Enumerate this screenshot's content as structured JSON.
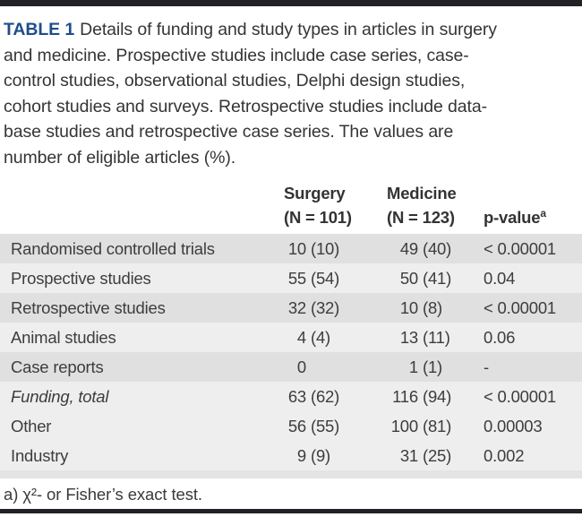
{
  "caption": {
    "label": "TABLE 1",
    "lines": [
      "Details of funding and study types in articles in surgery",
      "and medicine. Prospective studies include case series, case-",
      "control studies, observational studies, Delphi design studies,",
      "cohort studies and surveys. Retrospective studies include data-",
      "base studies and retrospective case series. The values are",
      "number of eligible articles (%)."
    ]
  },
  "table": {
    "columns": {
      "surgery": {
        "name": "Surgery",
        "n": "(N = 101)"
      },
      "medicine": {
        "name": "Medicine",
        "n": "(N = 123)"
      },
      "pvalue": {
        "name": "p-value",
        "footnote_mark": "a"
      }
    },
    "rows": [
      {
        "label": "Randomised controlled trials",
        "surgery_int": "10",
        "surgery_pct": "(10)",
        "medicine_int": "49",
        "medicine_pct": "(40)",
        "p": "< 0.00001"
      },
      {
        "label": "Prospective studies",
        "surgery_int": "55",
        "surgery_pct": "(54)",
        "medicine_int": "50",
        "medicine_pct": "(41)",
        "p": "0.04"
      },
      {
        "label": "Retrospective studies",
        "surgery_int": "32",
        "surgery_pct": "(32)",
        "medicine_int": "10",
        "medicine_pct": "(8)",
        "p": "< 0.00001"
      },
      {
        "label": "Animal studies",
        "surgery_int": "4",
        "surgery_pct": "(4)",
        "medicine_int": "13",
        "medicine_pct": "(11)",
        "p": "0.06"
      },
      {
        "label": "Case reports",
        "surgery_int": "0",
        "surgery_pct": "",
        "medicine_int": "1",
        "medicine_pct": "(1)",
        "p": "-"
      },
      {
        "label": "Funding, total",
        "surgery_int": "63",
        "surgery_pct": "(62)",
        "medicine_int": "116",
        "medicine_pct": "(94)",
        "p": "< 0.00001"
      },
      {
        "label": "Other",
        "surgery_int": "56",
        "surgery_pct": "(55)",
        "medicine_int": "100",
        "medicine_pct": "(81)",
        "p": "0.00003"
      },
      {
        "label": "Industry",
        "surgery_int": "9",
        "surgery_pct": "(9)",
        "medicine_int": "31",
        "medicine_pct": "(25)",
        "p": "0.002"
      }
    ]
  },
  "footnote": "a) χ²- or Fisher’s exact test.",
  "colors": {
    "accent_blue": "#1d4e89",
    "rule_dark": "#212227",
    "row_shaded": "#e0e0e0",
    "row_light": "#eeeeee",
    "text": "#3a3a3a"
  }
}
